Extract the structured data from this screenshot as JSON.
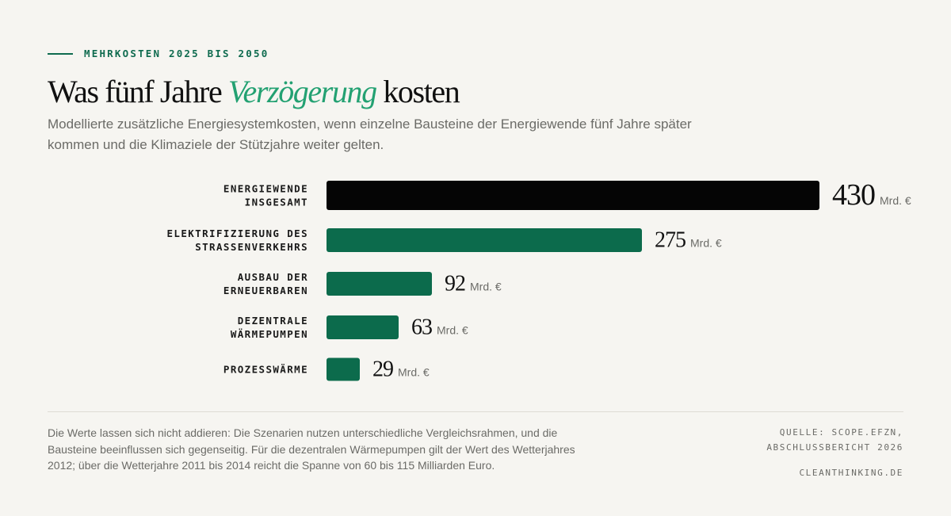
{
  "header": {
    "kicker": "MEHRKOSTEN 2025 BIS 2050",
    "title_before": "Was fünf Jahre ",
    "title_accent": "Verzögerung",
    "title_after": " kosten",
    "subtitle": "Modellierte zusätzliche Energiesystemkosten, wenn einzelne Bausteine der Energiewende fünf Jahre später kommen und die Klimaziele der Stützjahre weiter gelten."
  },
  "chart_data": {
    "type": "bar",
    "orientation": "horizontal",
    "categories": [
      [
        "ENERGIEWENDE",
        "INSGESAMT"
      ],
      [
        "ELEKTRIFIZIERUNG DES",
        "STRASSENVERKEHRS"
      ],
      [
        "AUSBAU DER",
        "ERNEUERBAREN"
      ],
      [
        "DEZENTRALE",
        "WÄRMEPUMPEN"
      ],
      [
        "PROZESSWÄRME"
      ]
    ],
    "values": [
      430,
      275,
      92,
      63,
      29
    ],
    "value_unit": "Mrd. €",
    "bar_colors": [
      "#050505",
      "#0c6b4c",
      "#0c6b4c",
      "#0c6b4c",
      "#0c6b4c"
    ],
    "highlight_first": true,
    "grid": false,
    "legend": "none"
  },
  "footer": {
    "note": "Die Werte lassen sich nicht addieren: Die Szenarien nutzen unterschiedliche Vergleichsrahmen, und die Bausteine beeinflussen sich gegenseitig. Für die dezentralen Wärmepumpen gilt der Wert des Wetterjahres 2012; über die Wetterjahre 2011 bis 2014 reicht die Spanne von 60 bis 115 Milliarden Euro.",
    "source_line1": "QUELLE: SCOPE.EFZN,",
    "source_line2": "ABSCHLUSSBERICHT 2026",
    "brand": "CLEANTHINKING.DE"
  },
  "colors": {
    "accent": "#23a172",
    "green": "#0c6b4c",
    "background": "#f6f5f1"
  }
}
